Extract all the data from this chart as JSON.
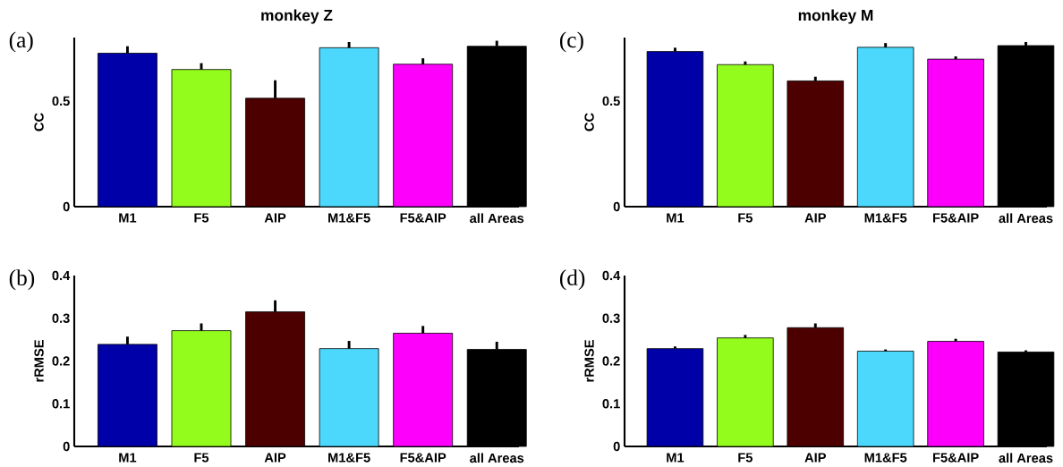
{
  "chart_data": [
    {
      "type": "bar",
      "title": "monkey Z",
      "ylabel": "CC",
      "annotations": [
        "(a)"
      ],
      "categories": [
        "M1",
        "F5",
        "AIP",
        "M1&F5",
        "F5&AIP",
        "all Areas"
      ],
      "values": [
        0.726,
        0.649,
        0.513,
        0.752,
        0.674,
        0.759
      ],
      "errors": [
        [
          0.726,
          0.759
        ],
        [
          0.649,
          0.679
        ],
        [
          0.513,
          0.598
        ],
        [
          0.752,
          0.779
        ],
        [
          0.674,
          0.702
        ],
        [
          0.759,
          0.785
        ]
      ],
      "colors": [
        "#0000a8",
        "#94fc1c",
        "#4c0000",
        "#4cd8fc",
        "#fc00fc",
        "#000000"
      ],
      "ylim": [
        0,
        0.8
      ],
      "yticks": [
        0,
        0.5
      ]
    },
    {
      "type": "bar",
      "title": "monkey M",
      "ylabel": "CC",
      "annotations": [
        "(c)"
      ],
      "categories": [
        "M1",
        "F5",
        "AIP",
        "M1&F5",
        "F5&AIP",
        "all Areas"
      ],
      "values": [
        0.734,
        0.672,
        0.595,
        0.754,
        0.698,
        0.762
      ],
      "errors": [
        [
          0.734,
          0.752
        ],
        [
          0.672,
          0.687
        ],
        [
          0.595,
          0.615
        ],
        [
          0.754,
          0.774
        ],
        [
          0.698,
          0.711
        ],
        [
          0.762,
          0.779
        ]
      ],
      "colors": [
        "#0000a8",
        "#94fc1c",
        "#4c0000",
        "#4cd8fc",
        "#fc00fc",
        "#000000"
      ],
      "ylim": [
        0,
        0.8
      ],
      "yticks": [
        0,
        0.5
      ]
    },
    {
      "type": "bar",
      "ylabel": "rRMSE",
      "annotations": [
        "(b)"
      ],
      "categories": [
        "M1",
        "F5",
        "AIP",
        "M1&F5",
        "F5&AIP",
        "all Areas"
      ],
      "values": [
        0.239,
        0.271,
        0.315,
        0.229,
        0.265,
        0.227
      ],
      "errors": [
        [
          0.239,
          0.257
        ],
        [
          0.271,
          0.288
        ],
        [
          0.315,
          0.342
        ],
        [
          0.229,
          0.247
        ],
        [
          0.265,
          0.282
        ],
        [
          0.227,
          0.245
        ]
      ],
      "colors": [
        "#0000a8",
        "#94fc1c",
        "#4c0000",
        "#4cd8fc",
        "#fc00fc",
        "#000000"
      ],
      "ylim": [
        0,
        0.4
      ],
      "yticks": [
        0,
        0.1,
        0.2,
        0.3,
        0.4
      ]
    },
    {
      "type": "bar",
      "ylabel": "rRMSE",
      "annotations": [
        "(d)"
      ],
      "categories": [
        "M1",
        "F5",
        "AIP",
        "M1&F5",
        "F5&AIP",
        "all Areas"
      ],
      "values": [
        0.229,
        0.254,
        0.278,
        0.223,
        0.246,
        0.221
      ],
      "errors": [
        [
          0.229,
          0.234
        ],
        [
          0.254,
          0.261
        ],
        [
          0.278,
          0.288
        ],
        [
          0.223,
          0.227
        ],
        [
          0.246,
          0.252
        ],
        [
          0.221,
          0.225
        ]
      ],
      "colors": [
        "#0000a8",
        "#94fc1c",
        "#4c0000",
        "#4cd8fc",
        "#fc00fc",
        "#000000"
      ],
      "ylim": [
        0,
        0.4
      ],
      "yticks": [
        0,
        0.1,
        0.2,
        0.3,
        0.4
      ]
    }
  ]
}
